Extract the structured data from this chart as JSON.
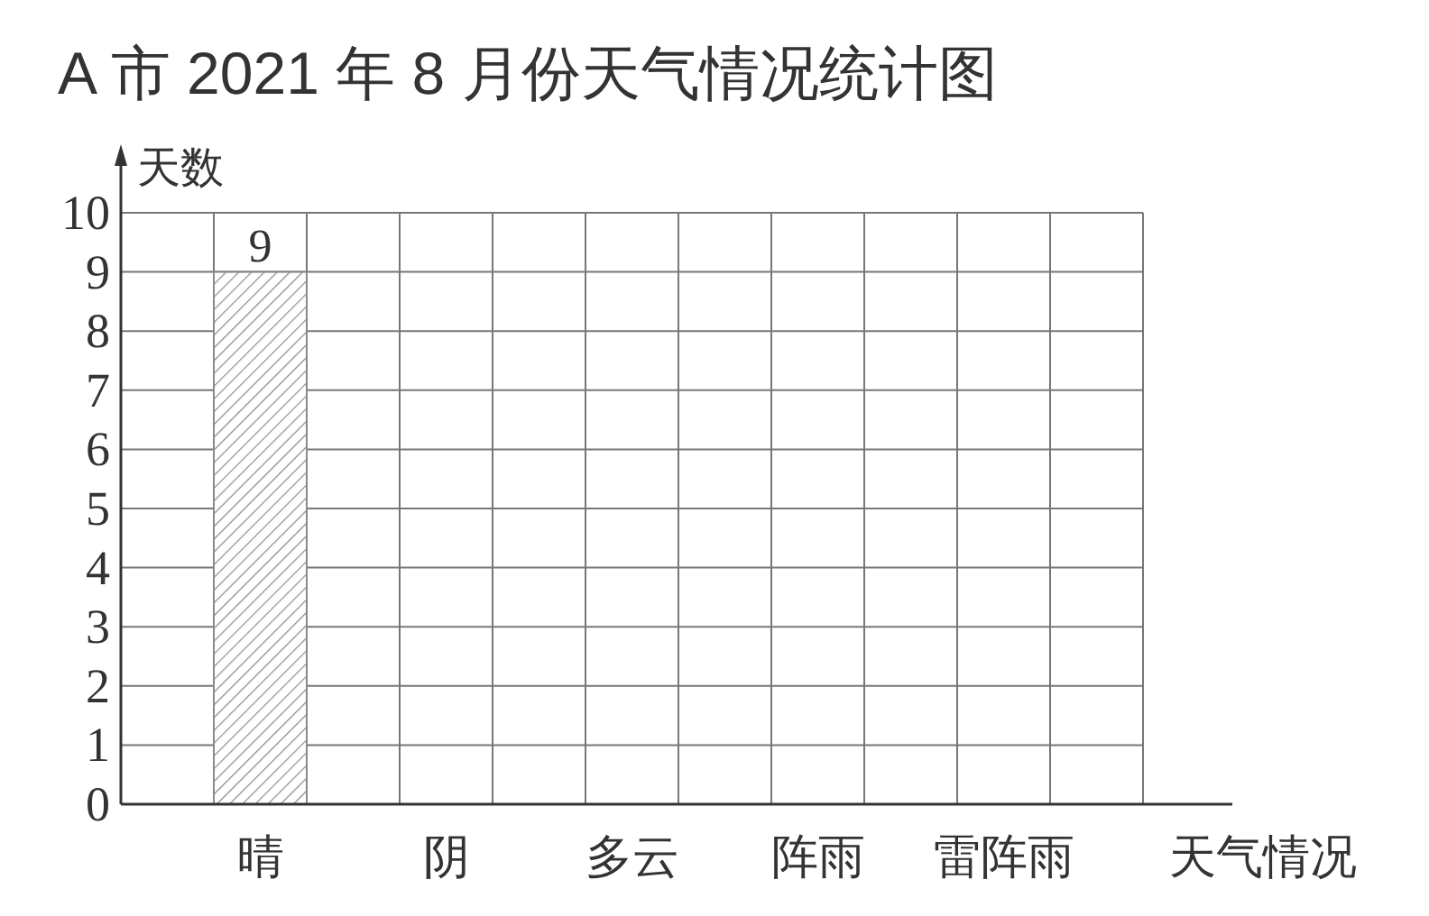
{
  "chart_data": {
    "type": "bar",
    "title": "A 市 2021 年 8 月份天气情况统计图",
    "xlabel": "天气情况",
    "ylabel": "天数",
    "categories": [
      "晴",
      "阴",
      "多云",
      "阵雨",
      "雷阵雨"
    ],
    "values": [
      9,
      null,
      null,
      null,
      null
    ],
    "color": "#8a8a8a",
    "ylim": [
      0,
      10
    ],
    "yticks": [
      0,
      1,
      2,
      3,
      4,
      5,
      6,
      7,
      8,
      9,
      10
    ],
    "grid": true,
    "data_labels": true
  }
}
